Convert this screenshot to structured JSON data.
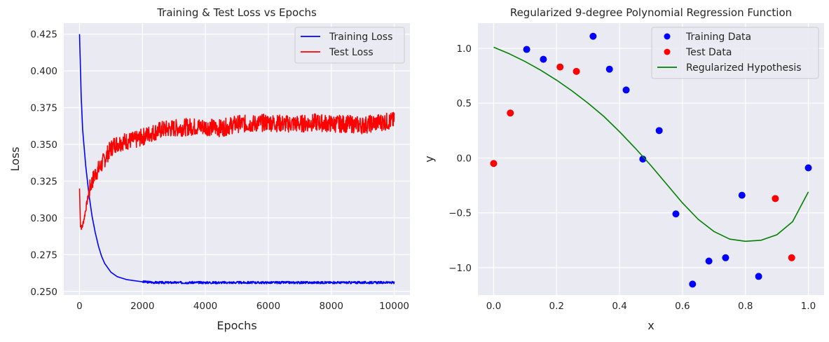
{
  "chart_data": [
    {
      "type": "line",
      "title": "Training & Test Loss vs Epochs",
      "xlabel": "Epochs",
      "ylabel": "Loss",
      "xlim": [
        -500,
        10500
      ],
      "ylim": [
        0.2475,
        0.4325
      ],
      "xticks": [
        0,
        2000,
        4000,
        6000,
        8000,
        10000
      ],
      "xtick_labels": [
        "0",
        "2000",
        "4000",
        "6000",
        "8000",
        "10000"
      ],
      "yticks": [
        0.25,
        0.275,
        0.3,
        0.325,
        0.35,
        0.375,
        0.4,
        0.425
      ],
      "ytick_labels": [
        "0.250",
        "0.275",
        "0.300",
        "0.325",
        "0.350",
        "0.375",
        "0.400",
        "0.425"
      ],
      "legend_position": "top-right",
      "series": [
        {
          "name": "Training Loss",
          "color": "#0000ff",
          "x": [
            0,
            50,
            100,
            200,
            300,
            400,
            500,
            600,
            700,
            800,
            1000,
            1200,
            1500,
            2000,
            2500,
            3000,
            4000,
            5000,
            6000,
            7000,
            8000,
            9000,
            10000
          ],
          "y": [
            0.425,
            0.385,
            0.36,
            0.335,
            0.316,
            0.301,
            0.29,
            0.281,
            0.274,
            0.269,
            0.263,
            0.26,
            0.258,
            0.2565,
            0.256,
            0.256,
            0.256,
            0.256,
            0.256,
            0.256,
            0.256,
            0.256,
            0.256
          ]
        },
        {
          "name": "Test Loss",
          "color": "#ff0000",
          "x": [
            0,
            30,
            80,
            150,
            250,
            350,
            500,
            700,
            900,
            1100,
            1400,
            1800,
            2200,
            2600,
            3000,
            3500,
            4000,
            4500,
            5000,
            5500,
            6000,
            6500,
            7000,
            7500,
            8000,
            8500,
            9000,
            9500,
            10000
          ],
          "y": [
            0.32,
            0.295,
            0.293,
            0.3,
            0.312,
            0.322,
            0.33,
            0.336,
            0.344,
            0.35,
            0.352,
            0.353,
            0.357,
            0.36,
            0.361,
            0.362,
            0.362,
            0.361,
            0.364,
            0.364,
            0.365,
            0.364,
            0.364,
            0.365,
            0.364,
            0.364,
            0.363,
            0.365,
            0.366
          ]
        }
      ]
    },
    {
      "type": "scatter",
      "title": "Regularized 9-degree Polynomial Regression Function",
      "xlabel": "x",
      "ylabel": "y",
      "xlim": [
        -0.05,
        1.05
      ],
      "ylim": [
        -1.25,
        1.23
      ],
      "xticks": [
        0,
        0.2,
        0.4,
        0.6,
        0.8,
        1.0
      ],
      "xtick_labels": [
        "0.0",
        "0.2",
        "0.4",
        "0.6",
        "0.8",
        "1.0"
      ],
      "yticks": [
        1.0,
        0.5,
        0.0,
        -0.5,
        -1.0
      ],
      "ytick_labels": [
        "1.0",
        "0.5",
        "0.0",
        "−0.5",
        "−1.0"
      ],
      "legend_position": "top-right",
      "series": [
        {
          "name": "Training Data",
          "kind": "scatter",
          "color": "#0000ff",
          "x": [
            0.105,
            0.158,
            0.316,
            0.368,
            0.421,
            0.474,
            0.526,
            0.579,
            0.632,
            0.684,
            0.737,
            0.789,
            0.842,
            1.0
          ],
          "y": [
            0.99,
            0.9,
            1.11,
            0.81,
            0.62,
            -0.01,
            0.25,
            -0.51,
            -1.15,
            -0.94,
            -0.91,
            -0.34,
            -1.08,
            -0.09
          ]
        },
        {
          "name": "Test Data",
          "kind": "scatter",
          "color": "#ff0000",
          "x": [
            0.0,
            0.053,
            0.211,
            0.263,
            0.895,
            0.947
          ],
          "y": [
            -0.05,
            0.41,
            0.83,
            0.79,
            -0.37,
            -0.91
          ]
        },
        {
          "name": "Regularized Hypothesis",
          "kind": "line",
          "color": "#008000",
          "x": [
            0.0,
            0.05,
            0.1,
            0.15,
            0.2,
            0.25,
            0.3,
            0.35,
            0.4,
            0.45,
            0.5,
            0.55,
            0.6,
            0.65,
            0.7,
            0.75,
            0.8,
            0.85,
            0.9,
            0.95,
            1.0
          ],
          "y": [
            1.01,
            0.95,
            0.88,
            0.8,
            0.71,
            0.61,
            0.5,
            0.38,
            0.24,
            0.09,
            -0.07,
            -0.24,
            -0.41,
            -0.56,
            -0.67,
            -0.74,
            -0.76,
            -0.75,
            -0.7,
            -0.58,
            -0.31
          ]
        }
      ]
    }
  ]
}
